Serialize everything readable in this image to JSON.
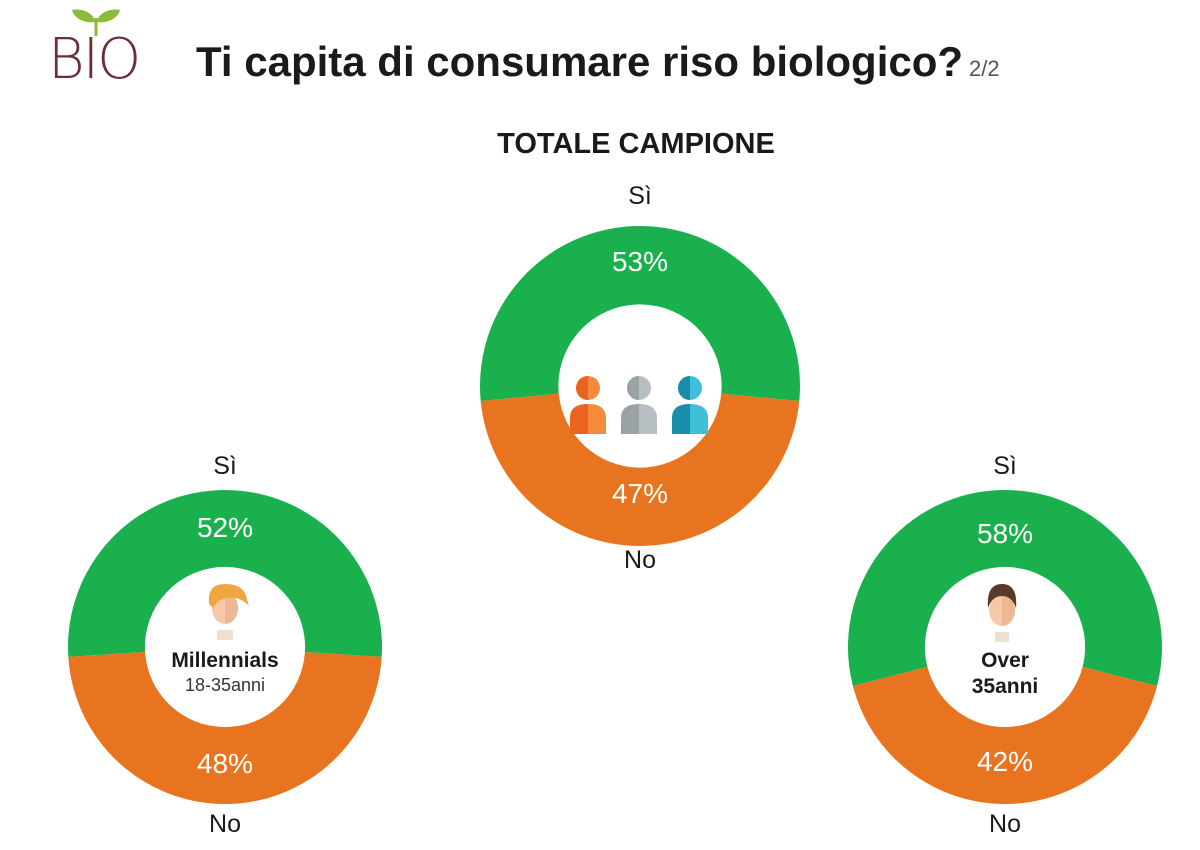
{
  "header": {
    "logo_text": "BIO",
    "title": "Ti capita di consumare riso biologico?",
    "page_indicator": "2/2"
  },
  "colors": {
    "yes": "#1ab04e",
    "no": "#e8741f",
    "logo": "#6b2f3a",
    "leaf": "#8bbb3a"
  },
  "chart_data": [
    {
      "type": "pie",
      "title": "TOTALE CAMPIONE",
      "categories": [
        "Sì",
        "No"
      ],
      "values": [
        53,
        47
      ],
      "unit": "%",
      "icon": "group-people-icon"
    },
    {
      "type": "pie",
      "title": "",
      "center_label": "Millennials",
      "center_sub": "18-35anni",
      "categories": [
        "Sì",
        "No"
      ],
      "values": [
        52,
        48
      ],
      "unit": "%",
      "icon": "young-person-icon"
    },
    {
      "type": "pie",
      "title": "",
      "center_label": "Over",
      "center_sub": "35anni",
      "categories": [
        "Sì",
        "No"
      ],
      "values": [
        58,
        42
      ],
      "unit": "%",
      "icon": "adult-man-icon"
    }
  ],
  "display": {
    "total": {
      "yes_label": "Sì",
      "no_label": "No",
      "yes_pct": "53%",
      "no_pct": "47%"
    },
    "millennials": {
      "yes_label": "Sì",
      "no_label": "No",
      "yes_pct": "52%",
      "no_pct": "48%",
      "name": "Millennials",
      "sub": "18-35anni"
    },
    "over": {
      "yes_label": "Sì",
      "no_label": "No",
      "yes_pct": "58%",
      "no_pct": "42%",
      "name": "Over",
      "sub": "35anni"
    }
  }
}
